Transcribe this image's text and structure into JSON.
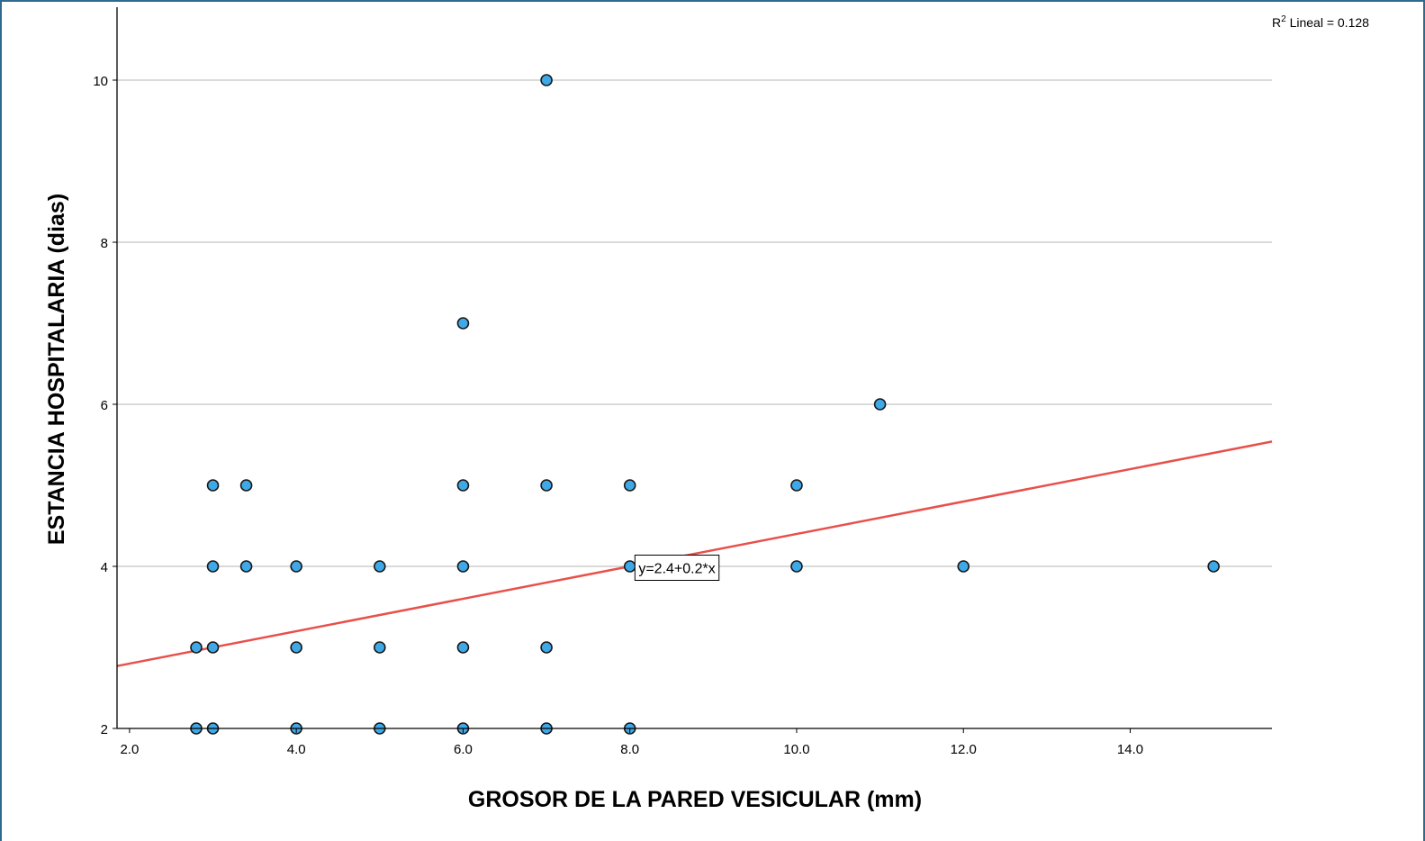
{
  "chart_data": {
    "type": "scatter",
    "xlabel": "GROSOR DE LA PARED VESICULAR (mm)",
    "ylabel": "ESTANCIA HOSPITALARIA (dias)",
    "xlim": [
      1.85,
      15.7
    ],
    "ylim": [
      2,
      10.9
    ],
    "x_ticks": [
      "2.0",
      "4.0",
      "6.0",
      "8.0",
      "10.0",
      "12.0",
      "14.0"
    ],
    "x_tick_values": [
      2,
      4,
      6,
      8,
      10,
      12,
      14
    ],
    "y_ticks": [
      "2",
      "4",
      "6",
      "8",
      "10"
    ],
    "y_tick_values": [
      2,
      4,
      6,
      8,
      10
    ],
    "grid": "horizontal",
    "points": [
      {
        "x": 2.8,
        "y": 2
      },
      {
        "x": 3,
        "y": 2
      },
      {
        "x": 4,
        "y": 2
      },
      {
        "x": 5,
        "y": 2
      },
      {
        "x": 6,
        "y": 2
      },
      {
        "x": 7,
        "y": 2
      },
      {
        "x": 8,
        "y": 2
      },
      {
        "x": 2.8,
        "y": 3
      },
      {
        "x": 3,
        "y": 3
      },
      {
        "x": 4,
        "y": 3
      },
      {
        "x": 5,
        "y": 3
      },
      {
        "x": 6,
        "y": 3
      },
      {
        "x": 7,
        "y": 3
      },
      {
        "x": 3,
        "y": 4
      },
      {
        "x": 3.4,
        "y": 4
      },
      {
        "x": 4,
        "y": 4
      },
      {
        "x": 5,
        "y": 4
      },
      {
        "x": 6,
        "y": 4
      },
      {
        "x": 8,
        "y": 4
      },
      {
        "x": 9,
        "y": 4
      },
      {
        "x": 10,
        "y": 4
      },
      {
        "x": 12,
        "y": 4
      },
      {
        "x": 15,
        "y": 4
      },
      {
        "x": 3,
        "y": 5
      },
      {
        "x": 3.4,
        "y": 5
      },
      {
        "x": 6,
        "y": 5
      },
      {
        "x": 7,
        "y": 5
      },
      {
        "x": 8,
        "y": 5
      },
      {
        "x": 10,
        "y": 5
      },
      {
        "x": 11,
        "y": 6
      },
      {
        "x": 6,
        "y": 7
      },
      {
        "x": 7,
        "y": 10
      }
    ],
    "fit_line": {
      "intercept": 2.4,
      "slope": 0.2,
      "label": "y=2.4+0.2*x",
      "label_x": 8.05,
      "label_y": 4.15
    },
    "r2_label": {
      "prefix": "R",
      "sup": "2",
      "suffix": " Lineal = 0.128"
    },
    "colors": {
      "point_fill": "#3fa9e8",
      "point_stroke": "#1a1a1a",
      "fit_line": "#e8504b",
      "grid": "#b4b4b4",
      "axis": "#000000",
      "frame": "#2e6b8f"
    }
  }
}
